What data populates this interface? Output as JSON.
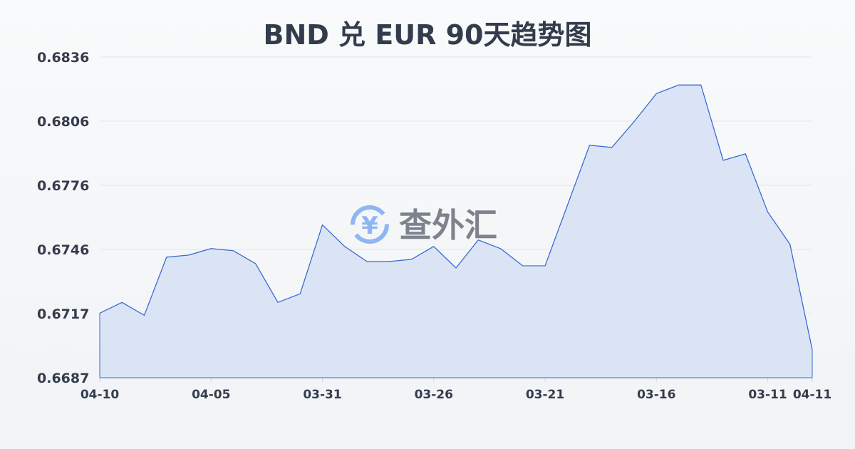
{
  "chart_data": {
    "type": "area",
    "title": "BND 兑 EUR 90天趋势图",
    "xlabel": "",
    "ylabel": "",
    "ylim": [
      0.6687,
      0.6836
    ],
    "y_ticks": [
      "0.6836",
      "0.6806",
      "0.6776",
      "0.6746",
      "0.6717",
      "0.6687"
    ],
    "x_tick_labels": [
      "04-10",
      "04-05",
      "03-31",
      "03-26",
      "03-21",
      "03-16",
      "03-11",
      "04-11"
    ],
    "grid": true,
    "x": [
      "04-10",
      "04-09",
      "04-08",
      "04-07",
      "04-06",
      "04-05",
      "04-04",
      "04-03",
      "04-02",
      "04-01",
      "03-31",
      "03-30",
      "03-29",
      "03-28",
      "03-27",
      "03-26",
      "03-25",
      "03-24",
      "03-23",
      "03-22",
      "03-21",
      "03-20",
      "03-19",
      "03-18",
      "03-17",
      "03-16",
      "03-15",
      "03-14",
      "03-13",
      "03-12",
      "03-11",
      "03-10",
      "04-11"
    ],
    "values": [
      0.6717,
      0.6722,
      0.6716,
      0.6743,
      0.6744,
      0.6747,
      0.6746,
      0.674,
      0.6722,
      0.6726,
      0.6758,
      0.6748,
      0.6741,
      0.6741,
      0.6742,
      0.6748,
      0.6738,
      0.6751,
      0.6747,
      0.6739,
      0.6739,
      0.6767,
      0.6795,
      0.6794,
      0.6806,
      0.6819,
      0.6823,
      0.6823,
      0.6788,
      0.6791,
      0.6764,
      0.6749,
      0.67
    ],
    "colors": {
      "line": "#3a6bd0",
      "fill": "#d6e0f5",
      "grid": "#e2e5ea"
    }
  },
  "watermark": {
    "text": "查外汇",
    "icon": "yen-exchange-icon",
    "color": "#4a8ef0"
  }
}
